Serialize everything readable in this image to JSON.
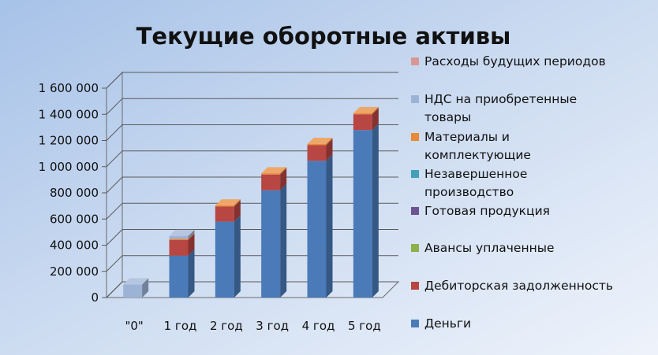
{
  "chart_data": {
    "type": "bar",
    "stacked": true,
    "three_d": true,
    "title": "Текущие оборотные активы",
    "categories": [
      "\"0\"",
      "1 год",
      "2 год",
      "3 год",
      "4 год",
      "5 год"
    ],
    "y_ticks": [
      "0",
      "200 000",
      "400 000",
      "600 000",
      "800 000",
      "1 000 000",
      "1 200 000",
      "1 400 000",
      "1 600 000"
    ],
    "ylim": [
      0,
      1600000
    ],
    "grid": true,
    "legend_position": "right",
    "series": [
      {
        "name": "Деньги",
        "color": "#4a7ab8",
        "values": [
          0,
          320000,
          580000,
          820000,
          1045000,
          1280000
        ]
      },
      {
        "name": "Дебиторская задолженность",
        "color": "#b84643",
        "values": [
          0,
          120000,
          115000,
          120000,
          120000,
          120000
        ]
      },
      {
        "name": "Авансы уплаченные",
        "color": "#8db04a",
        "values": [
          0,
          0,
          0,
          0,
          0,
          0
        ]
      },
      {
        "name": "Готовая продукция",
        "color": "#6e5292",
        "values": [
          0,
          0,
          0,
          0,
          0,
          0
        ]
      },
      {
        "name": "Незавершенное производство",
        "color": "#42a0b8",
        "values": [
          0,
          0,
          0,
          0,
          0,
          0
        ]
      },
      {
        "name": "Материалы и комплектующие",
        "color": "#e88a37",
        "values": [
          0,
          8000,
          8000,
          8000,
          8000,
          8000
        ]
      },
      {
        "name": "НДС на приобретенные товары",
        "color": "#9db3d6",
        "values": [
          100000,
          22000,
          0,
          0,
          0,
          0
        ]
      },
      {
        "name": "Расходы будущих периодов",
        "color": "#d99895",
        "values": [
          0,
          0,
          0,
          0,
          0,
          0
        ]
      }
    ],
    "legend": [
      {
        "lines": [
          "Расходы будущих периодов"
        ],
        "color": "#d99895"
      },
      {
        "lines": [
          "НДС на приобретенные",
          "товары"
        ],
        "color": "#9db3d6"
      },
      {
        "lines": [
          "Материалы и",
          "комплектующие"
        ],
        "color": "#e88a37"
      },
      {
        "lines": [
          "Незавершенное",
          "производство"
        ],
        "color": "#42a0b8"
      },
      {
        "lines": [
          "Готовая продукция"
        ],
        "color": "#6e5292"
      },
      {
        "lines": [
          "Авансы уплаченные"
        ],
        "color": "#8db04a"
      },
      {
        "lines": [
          "Дебиторская задолженность"
        ],
        "color": "#b84643"
      },
      {
        "lines": [
          "Деньги"
        ],
        "color": "#4a7ab8"
      }
    ]
  }
}
